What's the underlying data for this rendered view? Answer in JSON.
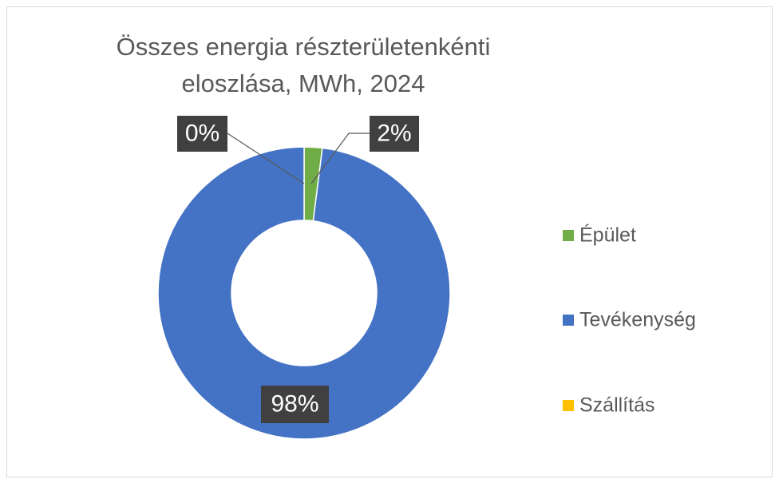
{
  "chart_data": {
    "type": "donut",
    "title": "Összes energia részterületenkénti eloszlása, MWh, 2024",
    "categories": [
      "Épület",
      "Tevékenység",
      "Szállítás"
    ],
    "values": [
      2,
      98,
      0
    ],
    "value_labels": [
      "2%",
      "98%",
      "0%"
    ],
    "colors": [
      "#70ad47",
      "#4472c4",
      "#ffc000"
    ],
    "legend": "right"
  }
}
